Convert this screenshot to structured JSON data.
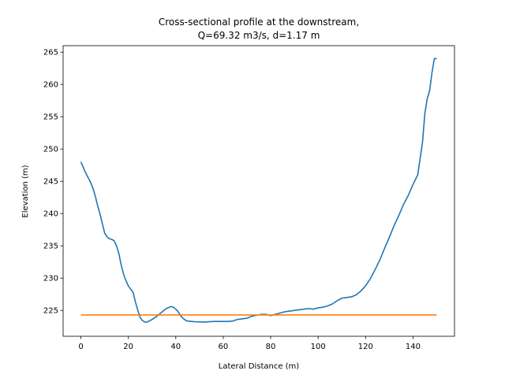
{
  "chart_data": {
    "type": "line",
    "title_lines": [
      "Cross-sectional profile at the downstream,",
      "Q=69.32 m3/s, d=1.17 m"
    ],
    "xlabel": "Lateral Distance (m)",
    "ylabel": "Elevation (m)",
    "xlim": [
      -7.5,
      157.5
    ],
    "ylim": [
      221.0,
      266.0
    ],
    "xticks": [
      0,
      20,
      40,
      60,
      80,
      100,
      120,
      140
    ],
    "yticks": [
      225,
      230,
      235,
      240,
      245,
      250,
      255,
      260,
      265
    ],
    "grid": false,
    "legend": "none",
    "series": [
      {
        "color": "#1f77b4",
        "x": [
          0,
          2,
          4,
          5,
          6,
          7,
          8,
          9,
          10,
          11,
          12,
          13,
          14,
          15,
          16,
          17,
          18,
          19,
          20,
          22,
          23,
          24,
          25,
          26,
          27,
          28,
          30,
          32,
          34,
          36,
          38,
          39,
          40,
          41,
          42,
          43,
          44,
          45,
          48,
          52,
          56,
          60,
          62,
          64,
          66,
          70,
          72,
          76,
          78,
          80,
          82,
          84,
          86,
          88,
          90,
          94,
          96,
          98,
          100,
          102,
          104,
          106,
          108,
          110,
          112,
          114,
          116,
          118,
          120,
          122,
          124,
          126,
          128,
          130,
          132,
          134,
          136,
          138,
          140,
          142,
          144,
          145,
          146,
          147,
          148,
          149,
          150
        ],
        "y": [
          248.0,
          246.3,
          244.9,
          244.0,
          242.8,
          241.3,
          240.0,
          238.5,
          237.0,
          236.4,
          236.1,
          236.0,
          235.8,
          235.0,
          233.8,
          232.0,
          230.6,
          229.6,
          228.8,
          227.8,
          226.3,
          225.0,
          223.9,
          223.4,
          223.2,
          223.2,
          223.6,
          224.1,
          224.7,
          225.3,
          225.6,
          225.5,
          225.2,
          224.8,
          224.2,
          223.8,
          223.5,
          223.35,
          223.25,
          223.2,
          223.3,
          223.3,
          223.3,
          223.35,
          223.6,
          223.8,
          224.1,
          224.4,
          224.4,
          224.2,
          224.4,
          224.6,
          224.8,
          224.9,
          225.0,
          225.2,
          225.3,
          225.2,
          225.4,
          225.5,
          225.7,
          226.0,
          226.5,
          226.9,
          227.0,
          227.1,
          227.4,
          228.0,
          228.8,
          229.9,
          231.3,
          232.8,
          234.6,
          236.3,
          238.1,
          239.7,
          241.4,
          242.8,
          244.5,
          246.0,
          251.0,
          255.5,
          257.8,
          259.0,
          261.8,
          264.0,
          264.0
        ],
        "y_end_override": null
      },
      {
        "color": "#ff7f0e",
        "x": [
          0,
          150
        ],
        "y": [
          224.3,
          224.3
        ]
      }
    ]
  }
}
